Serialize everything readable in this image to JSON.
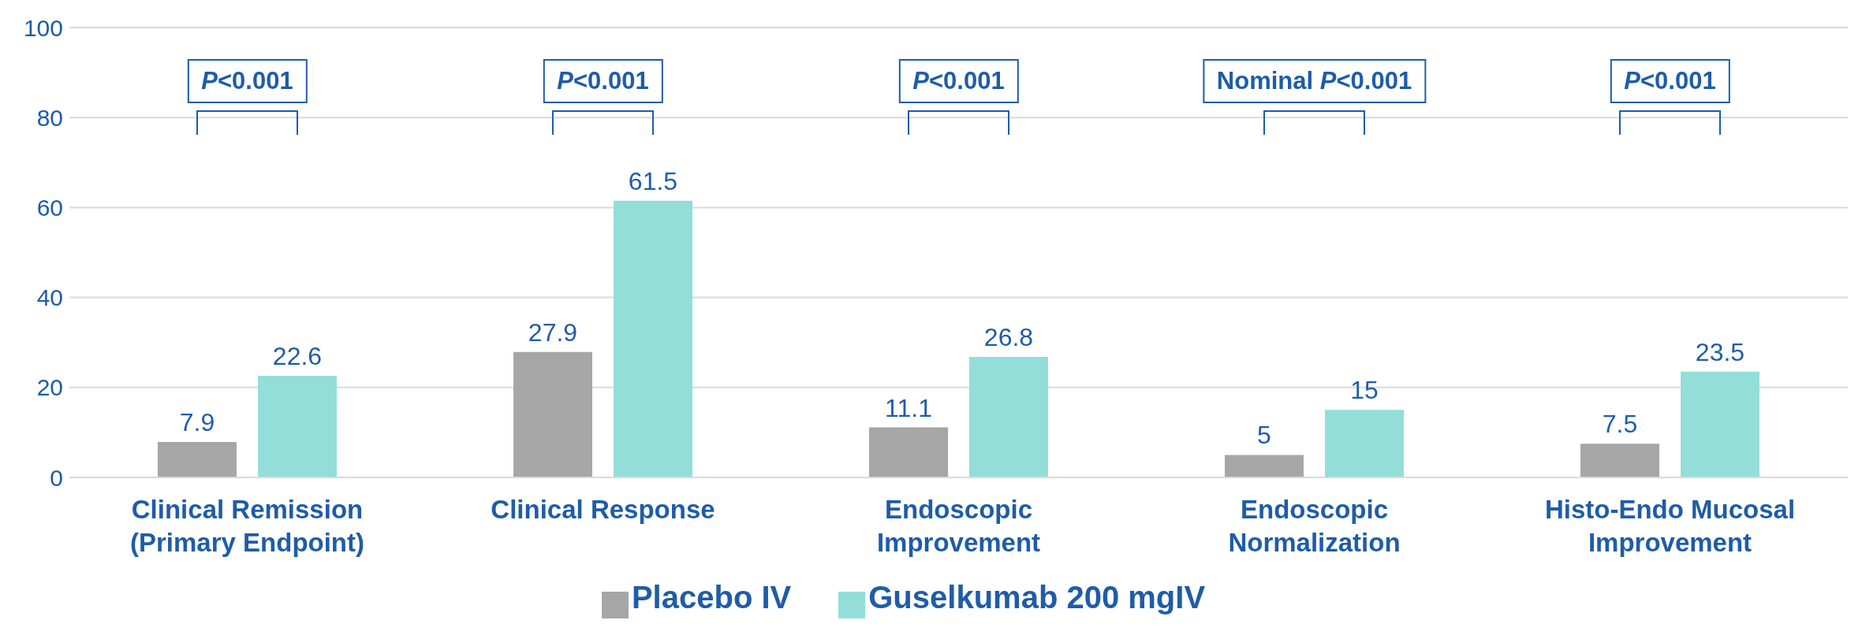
{
  "chart_data": {
    "type": "bar",
    "categories": [
      "Clinical Remission\n(Primary Endpoint)",
      "Clinical Response",
      "Endoscopic\nImprovement",
      "Endoscopic\nNormalization",
      "Histo-Endo Mucosal\nImprovement"
    ],
    "series": [
      {
        "name": "Placebo IV",
        "color": "#a6a6a6",
        "values": [
          7.9,
          27.9,
          11.1,
          5,
          7.5
        ]
      },
      {
        "name": "Guselkumab 200 mgIV",
        "color": "#93ded8",
        "values": [
          22.6,
          61.5,
          26.8,
          15,
          23.5
        ]
      }
    ],
    "ylim": [
      0,
      100
    ],
    "yticks": [
      0,
      20,
      40,
      60,
      80,
      100
    ],
    "grid": "y",
    "data_labels": true,
    "legend": "bottom",
    "annotations": [
      "P<0.001",
      "P<0.001",
      "P<0.001",
      "Nominal P<0.001",
      "P<0.001"
    ]
  }
}
